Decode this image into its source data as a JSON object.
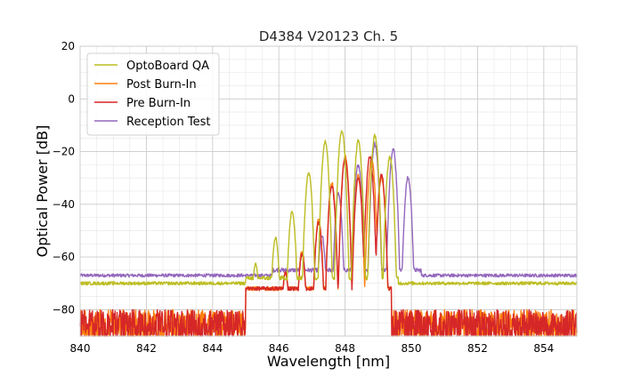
{
  "chart_data": {
    "type": "line",
    "title": "D4384 V20123 Ch. 5",
    "xlabel": "Wavelength [nm]",
    "ylabel": "Optical Power [dB]",
    "xlim": [
      840,
      855
    ],
    "ylim": [
      -90,
      20
    ],
    "xticks": [
      840,
      842,
      844,
      846,
      848,
      850,
      852,
      854
    ],
    "xtick_labels": [
      "840",
      "842",
      "844",
      "846",
      "848",
      "850",
      "852",
      "854"
    ],
    "yticks": [
      20,
      0,
      -20,
      -40,
      -60,
      -80
    ],
    "ytick_labels": [
      "20",
      "0",
      "−20",
      "−40",
      "−60",
      "−80"
    ],
    "grid": true,
    "legend_position": "top-left",
    "series": [
      {
        "name": "OptoBoard QA",
        "color": "#bcbd22",
        "noise_floor": -70,
        "peaks": [
          [
            845.3,
            -63
          ],
          [
            845.9,
            -53
          ],
          [
            846.4,
            -43
          ],
          [
            846.9,
            -28
          ],
          [
            847.4,
            -16
          ],
          [
            847.9,
            -12
          ],
          [
            848.4,
            -16
          ],
          [
            848.9,
            -14
          ],
          [
            849.35,
            -22
          ]
        ],
        "band": [
          845.0,
          849.6
        ]
      },
      {
        "name": "Post Burn-In",
        "color": "#ff7f0e",
        "noise_floor": -84,
        "peaks": [
          [
            845.7,
            -72
          ],
          [
            846.2,
            -66
          ],
          [
            846.7,
            -58
          ],
          [
            847.2,
            -46
          ],
          [
            847.6,
            -32
          ],
          [
            848.0,
            -22
          ],
          [
            848.4,
            -29
          ],
          [
            848.8,
            -23
          ],
          [
            849.1,
            -30
          ]
        ],
        "band": [
          845.0,
          849.4
        ]
      },
      {
        "name": "Pre Burn-In",
        "color": "#d62728",
        "noise_floor": -84,
        "peaks": [
          [
            845.7,
            -72
          ],
          [
            846.2,
            -66
          ],
          [
            846.7,
            -59
          ],
          [
            847.2,
            -47
          ],
          [
            847.6,
            -33
          ],
          [
            848.0,
            -23
          ],
          [
            848.4,
            -30
          ],
          [
            848.75,
            -22
          ],
          [
            849.1,
            -29
          ]
        ],
        "band": [
          845.0,
          849.4
        ]
      },
      {
        "name": "Reception Test",
        "color": "#9467bd",
        "noise_floor": -67,
        "peaks": [
          [
            846.0,
            -64
          ],
          [
            846.7,
            -58
          ],
          [
            847.3,
            -52
          ],
          [
            847.8,
            -36
          ],
          [
            848.4,
            -25
          ],
          [
            848.9,
            -17
          ],
          [
            849.45,
            -19
          ],
          [
            849.9,
            -30
          ]
        ],
        "band": [
          845.8,
          850.3
        ]
      }
    ]
  }
}
